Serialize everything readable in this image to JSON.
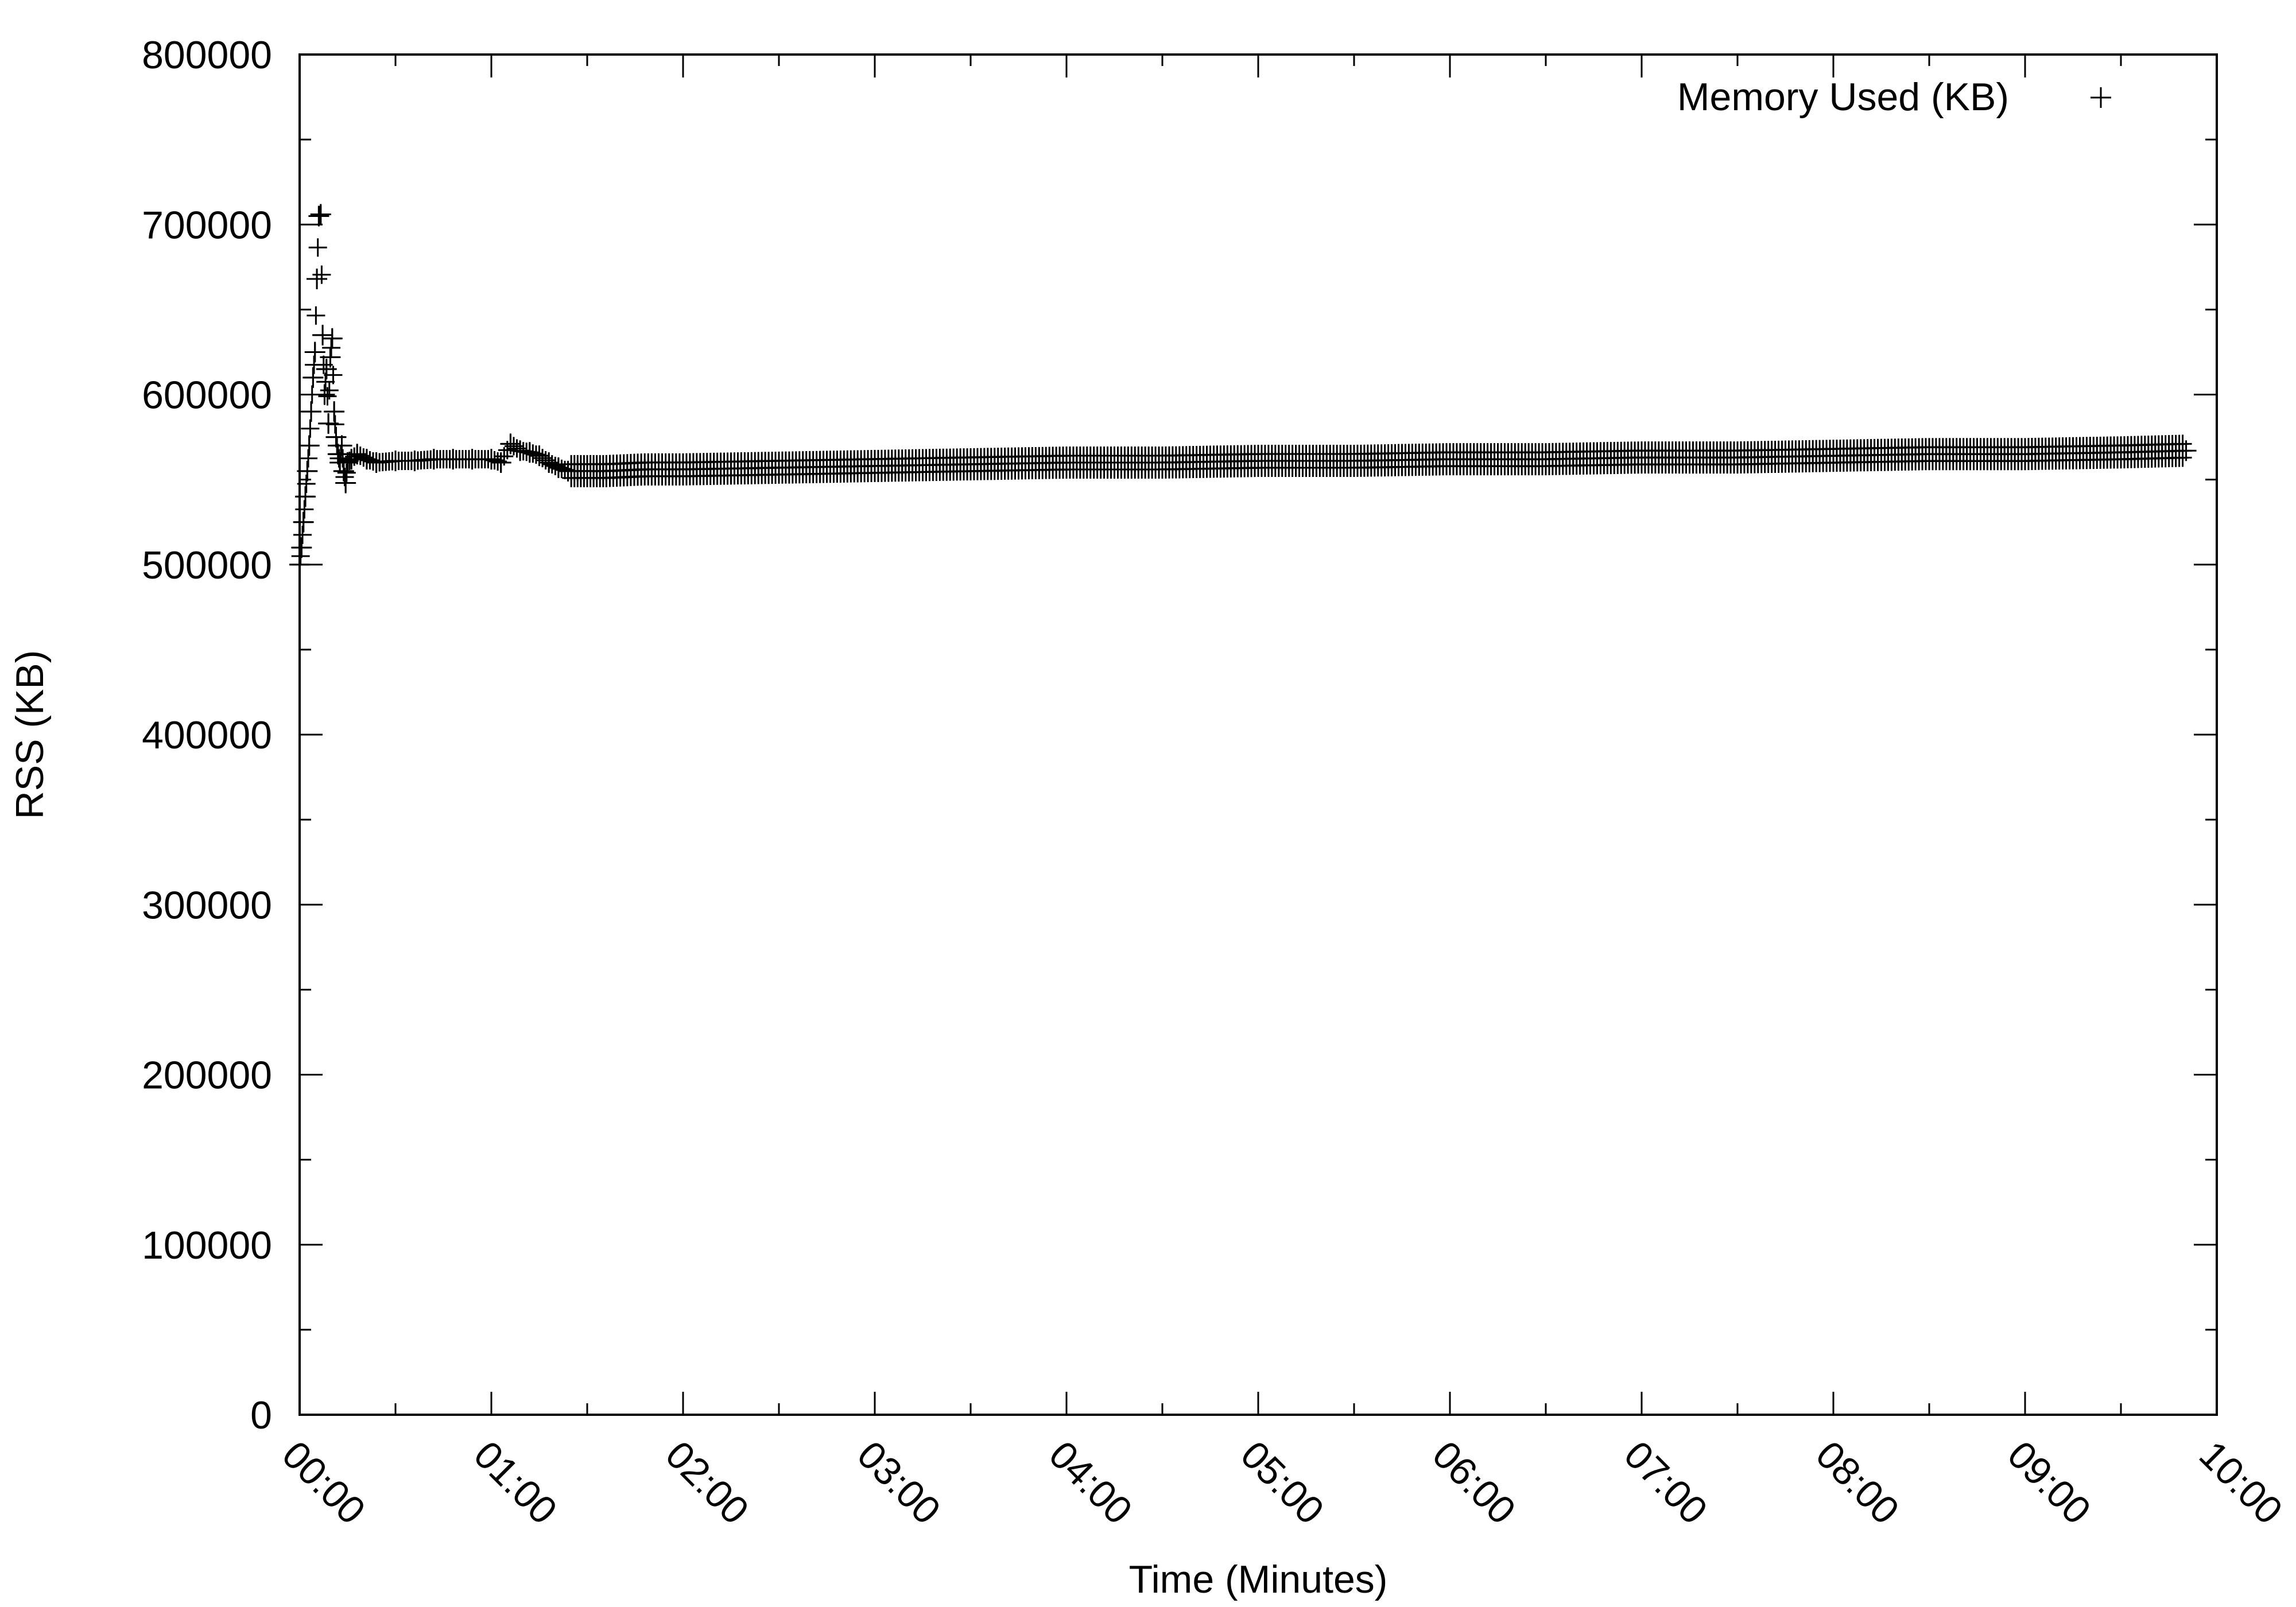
{
  "chart_data": {
    "type": "scatter",
    "title": "",
    "xlabel": "Time (Minutes)",
    "ylabel": "RSS (KB)",
    "xlim": [
      0,
      10
    ],
    "ylim": [
      0,
      800000
    ],
    "x_unit": "minutes",
    "x_tick_labels": [
      "00:00",
      "01:00",
      "02:00",
      "03:00",
      "04:00",
      "05:00",
      "06:00",
      "07:00",
      "08:00",
      "09:00",
      "10:00"
    ],
    "y_tick_labels": [
      "0",
      "100000",
      "200000",
      "300000",
      "400000",
      "500000",
      "600000",
      "700000",
      "800000"
    ],
    "x_tick_values": [
      0,
      1,
      2,
      3,
      4,
      5,
      6,
      7,
      8,
      9,
      10
    ],
    "y_tick_values": [
      0,
      100000,
      200000,
      300000,
      400000,
      500000,
      600000,
      700000,
      800000
    ],
    "grid": false,
    "legend": {
      "position": "top-right",
      "entries": [
        {
          "label": "Memory Used (KB)",
          "marker": "plus"
        }
      ]
    },
    "series": [
      {
        "name": "Memory Used (KB)",
        "marker": "plus",
        "color": "#000000",
        "x": [
          0.0,
          0.01,
          0.02,
          0.03,
          0.04,
          0.05,
          0.06,
          0.07,
          0.08,
          0.09,
          0.1,
          0.11,
          0.12,
          0.13,
          0.14,
          0.15,
          0.16,
          0.17,
          0.18,
          0.19,
          0.2,
          0.21,
          0.22,
          0.23,
          0.24,
          0.25,
          0.27,
          0.3,
          0.35,
          0.4,
          0.5,
          0.6,
          0.7,
          0.8,
          0.9,
          1.0,
          1.05,
          1.1,
          1.15,
          1.2,
          1.25,
          1.3,
          1.35,
          1.4,
          1.45,
          1.5,
          1.6,
          1.8,
          2.0,
          2.5,
          3.0,
          3.5,
          4.0,
          4.5,
          5.0,
          5.5,
          6.0,
          6.5,
          7.0,
          7.5,
          8.0,
          8.5,
          9.0,
          9.5,
          9.84
        ],
        "y": [
          500000,
          510000,
          525000,
          540000,
          555000,
          570000,
          590000,
          610000,
          625000,
          668000,
          705000,
          706000,
          635000,
          600000,
          615000,
          583000,
          622000,
          633000,
          590000,
          575000,
          565000,
          560000,
          570000,
          555000,
          548000,
          560000,
          562000,
          565000,
          562000,
          560000,
          561000,
          561000,
          562000,
          562000,
          562000,
          562000,
          560000,
          571000,
          567000,
          566000,
          564000,
          560000,
          557000,
          555000,
          555000,
          555000,
          555000,
          556000,
          556000,
          557000,
          558000,
          559000,
          560000,
          560000,
          561000,
          561000,
          562000,
          562000,
          563000,
          563000,
          564000,
          565000,
          565000,
          566000,
          567000
        ]
      }
    ]
  }
}
